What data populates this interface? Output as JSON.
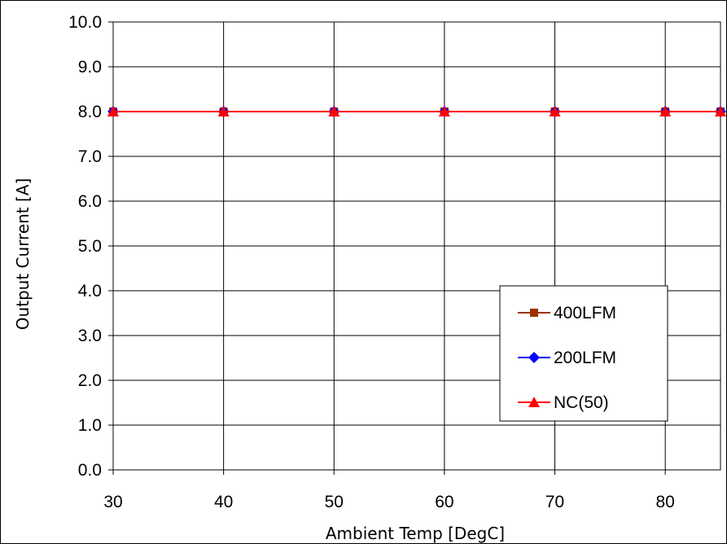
{
  "chart_data": {
    "type": "line",
    "title": "",
    "xlabel": "Ambient Temp [DegC]",
    "ylabel": "Output Current [A]",
    "x": [
      30,
      40,
      50,
      60,
      70,
      80,
      85
    ],
    "xlim": [
      30,
      85
    ],
    "ylim": [
      0,
      10
    ],
    "x_ticks": [
      "30",
      "40",
      "50",
      "60",
      "70",
      "80"
    ],
    "y_ticks": [
      "0.0",
      "1.0",
      "2.0",
      "3.0",
      "4.0",
      "5.0",
      "6.0",
      "7.0",
      "8.0",
      "9.0",
      "10.0"
    ],
    "grid": true,
    "legend_position": "bottom-right",
    "series": [
      {
        "name": "400LFM",
        "values": [
          8,
          8,
          8,
          8,
          8,
          8,
          8
        ],
        "color": "#993300",
        "marker": "square"
      },
      {
        "name": "200LFM",
        "values": [
          8,
          8,
          8,
          8,
          8,
          8,
          8
        ],
        "color": "#0000ff",
        "marker": "diamond"
      },
      {
        "name": "NC(50)",
        "values": [
          8,
          8,
          8,
          8,
          8,
          8,
          8
        ],
        "color": "#ff0000",
        "marker": "triangle"
      }
    ]
  }
}
